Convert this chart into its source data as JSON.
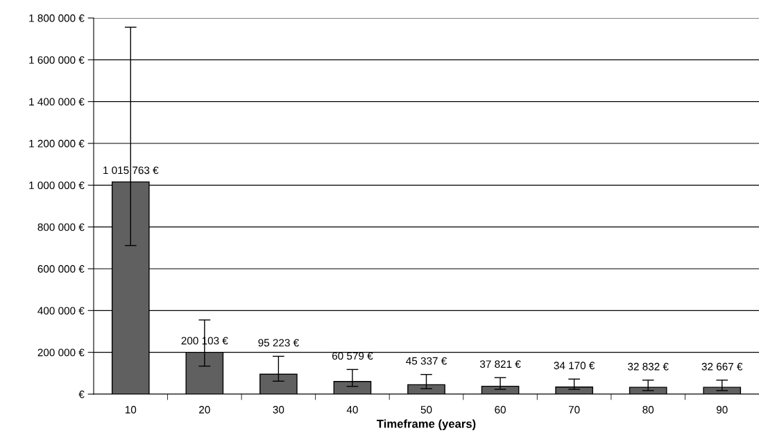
{
  "chart_data": {
    "type": "bar",
    "xlabel": "Timeframe (years)",
    "categories": [
      "10",
      "20",
      "30",
      "40",
      "50",
      "60",
      "70",
      "80",
      "90"
    ],
    "values": [
      1015763,
      200103,
      95223,
      60579,
      45337,
      37821,
      34170,
      32832,
      32667
    ],
    "value_labels": [
      "1 015 763 €",
      "200 103 €",
      "95 223 €",
      "60 579 €",
      "45 337 €",
      "37 821 €",
      "34 170 €",
      "32 832 €",
      "32 667 €"
    ],
    "errors": [
      [
        711000,
        1756000
      ],
      [
        134000,
        355000
      ],
      [
        62000,
        181000
      ],
      [
        37000,
        118000
      ],
      [
        26000,
        94000
      ],
      [
        23000,
        79000
      ],
      [
        23000,
        72000
      ],
      [
        17000,
        67000
      ],
      [
        17000,
        67000
      ]
    ],
    "color": "#606060",
    "ylim": [
      0,
      1800000
    ],
    "yticks": [
      {
        "value": 0,
        "label": "€"
      },
      {
        "value": 200000,
        "label": "200 000 €"
      },
      {
        "value": 400000,
        "label": "400 000 €"
      },
      {
        "value": 600000,
        "label": "600 000 €"
      },
      {
        "value": 800000,
        "label": "800 000 €"
      },
      {
        "value": 1000000,
        "label": "1 000 000 €"
      },
      {
        "value": 1200000,
        "label": "1 200 000 €"
      },
      {
        "value": 1400000,
        "label": "1 400 000 €"
      },
      {
        "value": 1600000,
        "label": "1 600 000 €"
      },
      {
        "value": 1800000,
        "label": "1 800 000 €"
      }
    ],
    "grid": "y"
  }
}
